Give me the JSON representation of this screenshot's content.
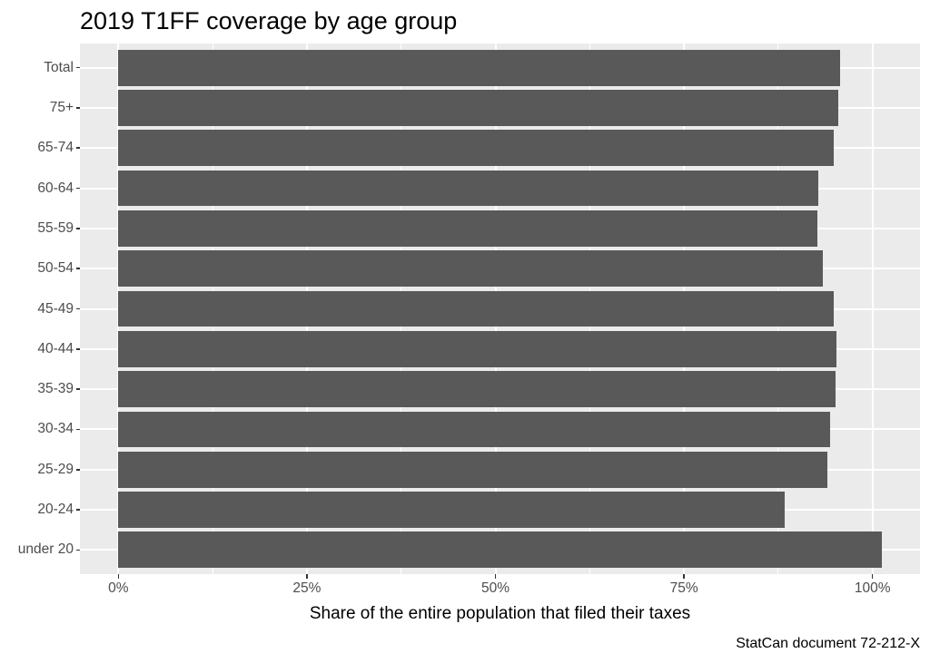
{
  "chart_data": {
    "type": "bar",
    "orientation": "horizontal",
    "title": "2019 T1FF coverage by age group",
    "xlabel": "Share of the entire population that filed their taxes",
    "ylabel": "",
    "caption": "StatCan document 72-212-X",
    "categories": [
      "Total",
      "75+",
      "65-74",
      "60-64",
      "55-59",
      "50-54",
      "45-49",
      "40-44",
      "35-39",
      "30-34",
      "25-29",
      "20-24",
      "under 20"
    ],
    "values": [
      95.7,
      95.5,
      94.9,
      92.8,
      92.7,
      93.4,
      94.8,
      95.2,
      95.1,
      94.4,
      94.0,
      88.3,
      101.2
    ],
    "unit": "%",
    "x_major_ticks": [
      {
        "value": 0,
        "label": "0%"
      },
      {
        "value": 25,
        "label": "25%"
      },
      {
        "value": 50,
        "label": "50%"
      },
      {
        "value": 75,
        "label": "75%"
      },
      {
        "value": 100,
        "label": "100%"
      }
    ],
    "x_minor_ticks": [
      12.5,
      37.5,
      62.5,
      87.5
    ],
    "xlim": [
      -5.1,
      106.3
    ],
    "bar_width_fraction": 0.9,
    "grid": "on",
    "legend": "none",
    "colors": {
      "bar": "#595959",
      "panel_background": "#EBEBEB",
      "gridline": "#FFFFFF",
      "axis_text": "#4D4D4D",
      "tick_mark": "#333333",
      "title_text": "#000000",
      "background": "#FFFFFF"
    }
  }
}
